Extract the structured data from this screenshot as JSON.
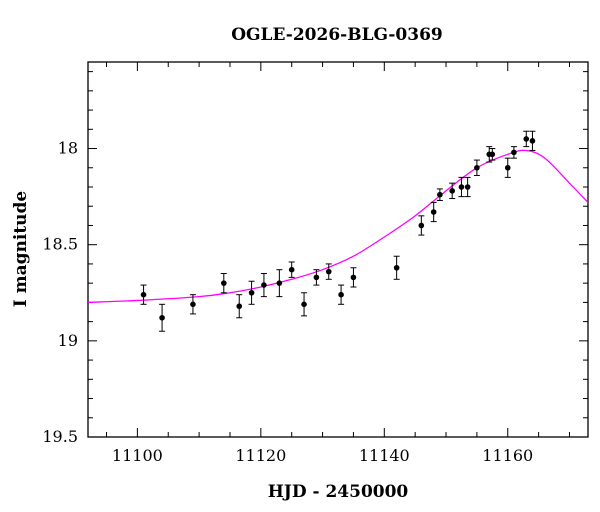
{
  "chart_data": {
    "type": "scatter",
    "title": "OGLE-2026-BLG-0369",
    "xlabel": "HJD - 2450000",
    "ylabel": "I magnitude",
    "xlim": [
      11092,
      11173
    ],
    "ylim": [
      19.5,
      17.55
    ],
    "y_inverted": true,
    "grid": false,
    "legend": "none",
    "x_ticks": [
      11100,
      11120,
      11140,
      11160
    ],
    "y_ticks": [
      18,
      18.5,
      19,
      19.5
    ],
    "y_tick_labels": [
      "18",
      "18.5",
      "19",
      "19.5"
    ],
    "series": [
      {
        "kind": "points_with_errorbars",
        "color": "#000000",
        "x": [
          11101,
          11104,
          11109,
          11114,
          11116.5,
          11118.5,
          11120.5,
          11123,
          11125,
          11127,
          11129,
          11131,
          11133,
          11135,
          11142,
          11146,
          11148,
          11149,
          11151,
          11152.5,
          11153.5,
          11155,
          11157,
          11157.5,
          11160,
          11161,
          11163,
          11164
        ],
        "y": [
          18.76,
          18.88,
          18.81,
          18.7,
          18.82,
          18.75,
          18.71,
          18.7,
          18.63,
          18.81,
          18.67,
          18.64,
          18.76,
          18.67,
          18.62,
          18.4,
          18.33,
          18.24,
          18.22,
          18.2,
          18.2,
          18.1,
          18.03,
          18.03,
          18.1,
          18.02,
          17.95,
          17.96
        ],
        "yerr": [
          0.05,
          0.07,
          0.05,
          0.05,
          0.06,
          0.06,
          0.06,
          0.07,
          0.04,
          0.06,
          0.04,
          0.04,
          0.05,
          0.05,
          0.06,
          0.05,
          0.05,
          0.03,
          0.04,
          0.05,
          0.05,
          0.04,
          0.04,
          0.03,
          0.05,
          0.03,
          0.04,
          0.05
        ]
      },
      {
        "kind": "model_curve",
        "color": "#ff00ff",
        "x": [
          11092,
          11100,
          11110,
          11115,
          11120,
          11125,
          11130,
          11135,
          11140,
          11145,
          11150,
          11155,
          11160,
          11163,
          11166,
          11170,
          11173
        ],
        "y": [
          18.8,
          18.79,
          18.77,
          18.75,
          18.72,
          18.68,
          18.63,
          18.56,
          18.46,
          18.35,
          18.22,
          18.1,
          18.03,
          18.01,
          18.05,
          18.18,
          18.28
        ]
      }
    ]
  }
}
